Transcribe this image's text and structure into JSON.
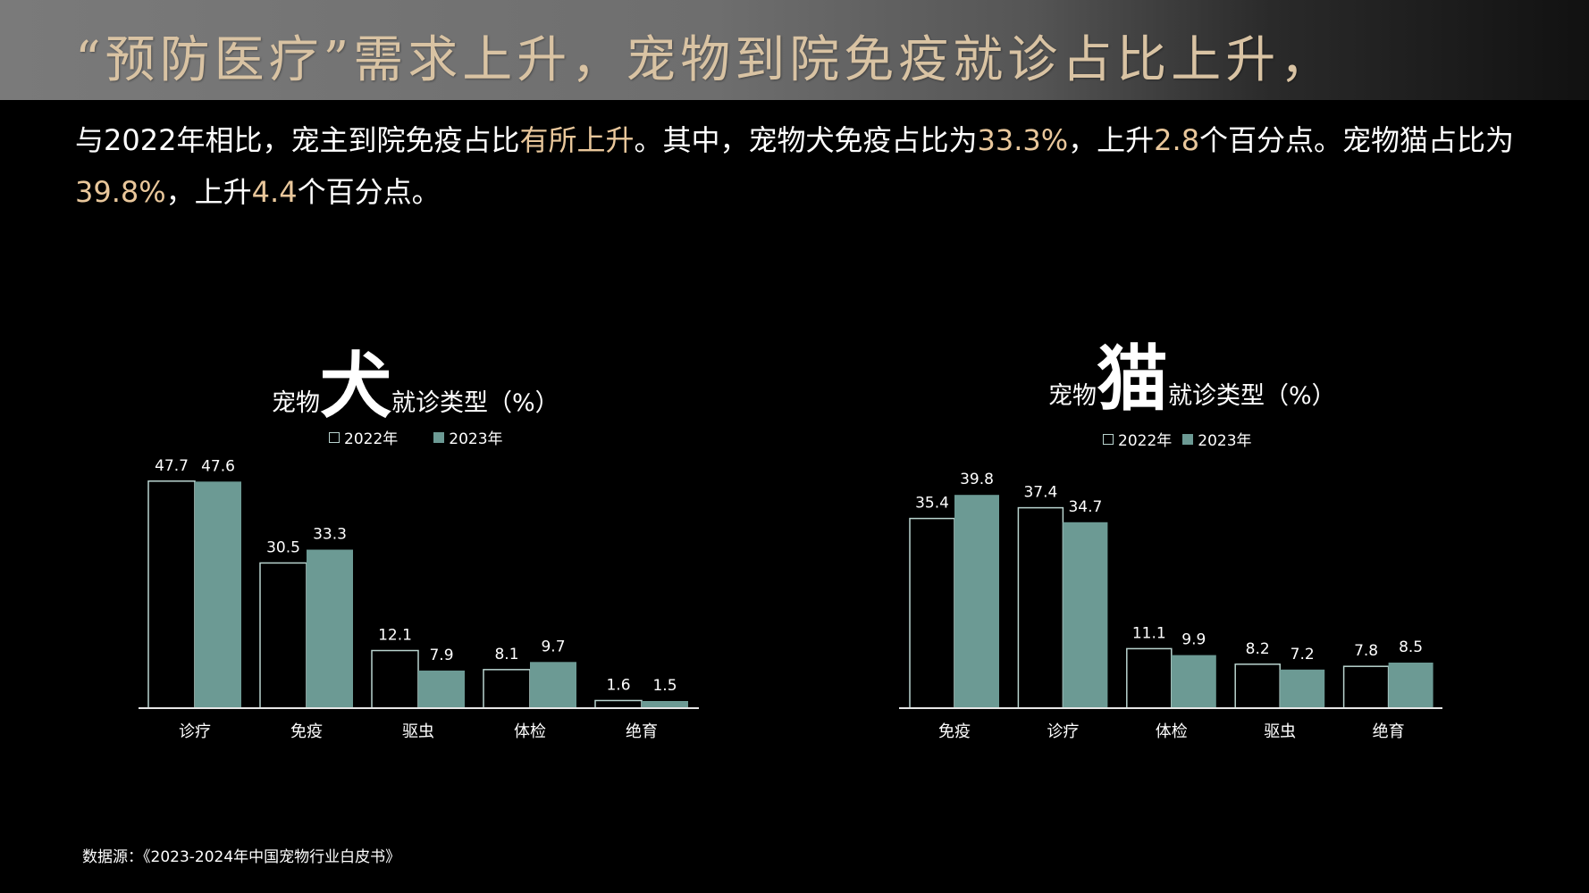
{
  "header": {
    "title": "“预防医疗”需求上升，宠物到院免疫就诊占比上升，"
  },
  "summary": {
    "p1": "与2022年相比，宠主到院免疫占比",
    "h1": "有所上升",
    "p2": "。其中，宠物犬免疫占比为",
    "h2": "33.3%",
    "p3": "，上升",
    "h3": "2.8",
    "p4": "个百分点。宠物猫占比为",
    "h4": "39.8%",
    "p5": "，上升",
    "h5": "4.4",
    "p6": "个百分点。"
  },
  "colors": {
    "bar_2023": "#6c9a94",
    "bar_2022_outline": "#b9d4cf",
    "highlight": "#e9c79b"
  },
  "chart_data": [
    {
      "type": "bar",
      "title_prefix": "宠物",
      "title_emphasis": "犬",
      "title_suffix": "就诊类型（%）",
      "categories": [
        "诊疗",
        "免疫",
        "驱虫",
        "体检",
        "绝育"
      ],
      "series": [
        {
          "name": "2022年",
          "values": [
            47.7,
            30.5,
            12.1,
            8.1,
            1.6
          ]
        },
        {
          "name": "2023年",
          "values": [
            47.6,
            33.3,
            7.9,
            9.7,
            1.5
          ]
        }
      ],
      "legend": "top",
      "grid": false
    },
    {
      "type": "bar",
      "title_prefix": "宠物",
      "title_emphasis": "猫",
      "title_suffix": "就诊类型（%）",
      "categories": [
        "免疫",
        "诊疗",
        "体检",
        "驱虫",
        "绝育"
      ],
      "series": [
        {
          "name": "2022年",
          "values": [
            35.4,
            37.4,
            11.1,
            8.2,
            7.8
          ]
        },
        {
          "name": "2023年",
          "values": [
            39.8,
            34.7,
            9.9,
            7.2,
            8.5
          ]
        }
      ],
      "legend": "top",
      "grid": false
    }
  ],
  "source": "数据源：《2023-2024年中国宠物行业白皮书》"
}
